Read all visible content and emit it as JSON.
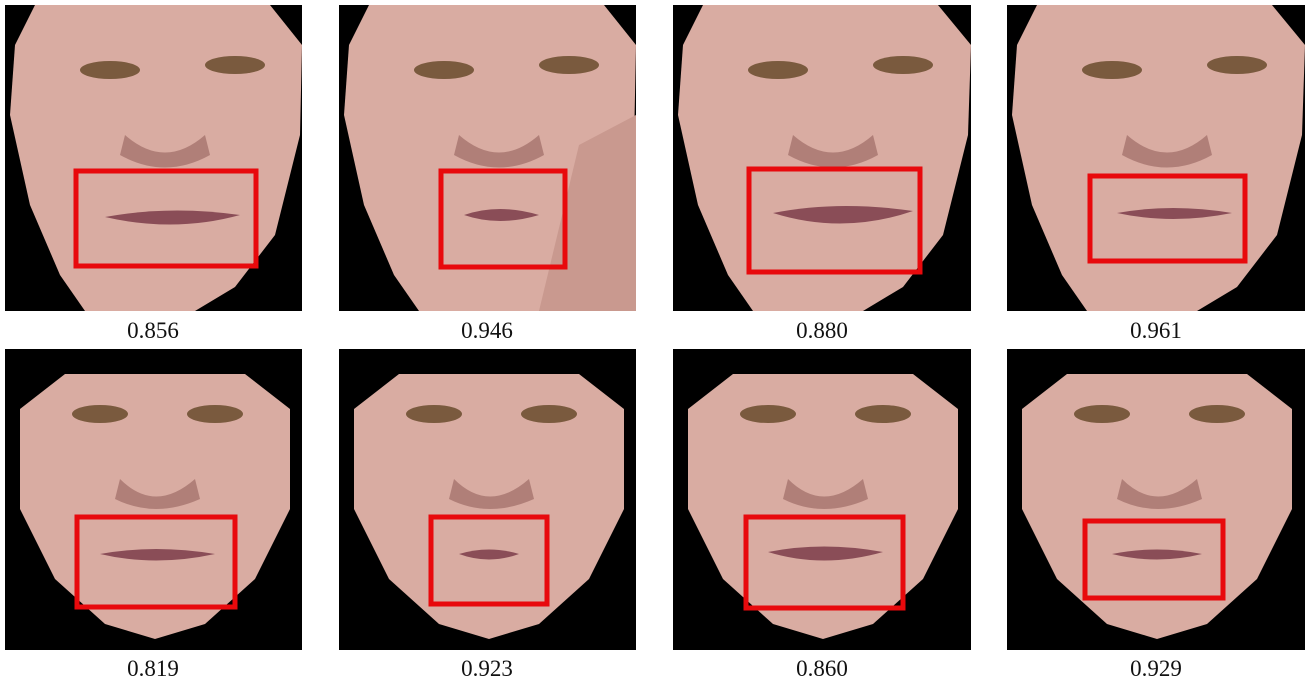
{
  "figure": {
    "scores": [
      "0.856",
      "0.946",
      "0.880",
      "0.961",
      "0.819",
      "0.923",
      "0.860",
      "0.929"
    ],
    "highlight_color": "#e8090c",
    "skin_color": "#d9aca2",
    "background_color": "#000000"
  }
}
